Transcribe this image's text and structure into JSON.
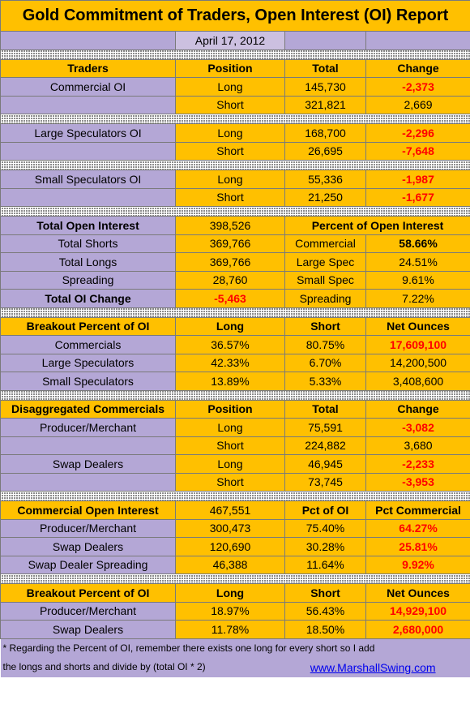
{
  "header": {
    "title": "Gold Commitment of Traders, Open Interest (OI) Report",
    "date": "April 17, 2012"
  },
  "table": {
    "rows": [
      [
        "Traders",
        "Position",
        "Total",
        "Change"
      ],
      [
        "Commercial OI",
        "Long",
        "145,730",
        "-2,373"
      ],
      [
        "Short",
        "321,821",
        "2,669"
      ],
      [
        "Large Speculators OI",
        "Long",
        "168,700",
        "-2,296"
      ],
      [
        "Short",
        "26,695",
        "-7,648"
      ],
      [
        "Small Speculators OI",
        "Long",
        "55,336",
        "-1,987"
      ],
      [
        "Short",
        "21,250",
        "-1,677"
      ],
      [
        "Total Open Interest",
        "398,526",
        "Percent of Open Interest"
      ],
      [
        "Total Shorts",
        "369,766",
        "Commercial",
        "58.66%"
      ],
      [
        "Total Longs",
        "369,766",
        "Large Spec",
        "24.51%"
      ],
      [
        "Spreading",
        "28,760",
        "Small Spec",
        "9.61%"
      ],
      [
        "Total OI Change",
        "-5,463",
        "Spreading",
        "7.22%"
      ],
      [
        "Breakout Percent of OI",
        "Long",
        "Short",
        "Net Ounces"
      ],
      [
        "Commercials",
        "36.57%",
        "80.75%",
        "17,609,100"
      ],
      [
        "Large Speculators",
        "42.33%",
        "6.70%",
        "14,200,500"
      ],
      [
        "Small Speculators",
        "13.89%",
        "5.33%",
        "3,408,600"
      ],
      [
        "Disaggregated Commercials",
        "Position",
        "Total",
        "Change"
      ],
      [
        "Producer/Merchant",
        "Long",
        "75,591",
        "-3,082"
      ],
      [
        "Short",
        "224,882",
        "3,680"
      ],
      [
        "Swap Dealers",
        "Long",
        "46,945",
        "-2,233"
      ],
      [
        "Short",
        "73,745",
        "-3,953"
      ],
      [
        "Commercial Open Interest",
        "467,551",
        "Pct of OI",
        "Pct Commercial"
      ],
      [
        "Producer/Merchant",
        "300,473",
        "75.40%",
        "64.27%"
      ],
      [
        "Swap Dealers",
        "120,690",
        "30.28%",
        "25.81%"
      ],
      [
        "Swap Dealer Spreading",
        "46,388",
        "11.64%",
        "9.92%"
      ],
      [
        "Breakout Percent of OI",
        "Long",
        "Short",
        "Net Ounces"
      ],
      [
        "Producer/Merchant",
        "18.97%",
        "56.43%",
        "14,929,100"
      ],
      [
        "Swap Dealers",
        "11.78%",
        "18.50%",
        "2,680,000"
      ]
    ]
  },
  "footer": {
    "note_line1": "* Regarding the Percent of OI, remember there exists one long for every short so I add",
    "note_line2": "the longs and shorts and divide by (total OI * 2)",
    "link": "www.MarshallSwing.com"
  }
}
